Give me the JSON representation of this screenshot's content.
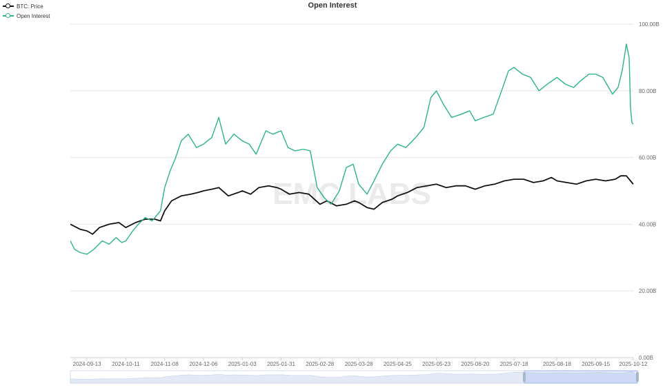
{
  "chart_data": {
    "type": "line",
    "title": "Open Interest",
    "xlabel": "",
    "ylabel": "",
    "watermark": "EMC LABS",
    "x_ticks": [
      "2024-09-13",
      "2024-10-11",
      "2024-11-08",
      "2024-12-06",
      "2025-01-03",
      "2025-01-31",
      "2025-02-28",
      "2025-03-28",
      "2025-04-25",
      "2025-05-23",
      "2025-06-20",
      "2025-07-18",
      "2025-08-18",
      "2025-09-15",
      "2025-10-12"
    ],
    "y_ticks": [
      "0.00B",
      "20.00B",
      "40.00B",
      "60.00B",
      "80.00B",
      "100.00B"
    ],
    "ylim": [
      0,
      100
    ],
    "xlim": [
      "2024-09-01",
      "2025-10-12"
    ],
    "grid": true,
    "legend_position": "top-left",
    "series": [
      {
        "name": "BTC: Price",
        "color": "#111111",
        "points": [
          [
            "2024-09-01",
            40.0
          ],
          [
            "2024-09-08",
            38.5
          ],
          [
            "2024-09-13",
            38.0
          ],
          [
            "2024-09-17",
            37.0
          ],
          [
            "2024-09-22",
            39.0
          ],
          [
            "2024-09-29",
            40.0
          ],
          [
            "2024-10-06",
            40.5
          ],
          [
            "2024-10-11",
            39.0
          ],
          [
            "2024-10-18",
            40.5
          ],
          [
            "2024-10-25",
            41.5
          ],
          [
            "2024-11-01",
            41.5
          ],
          [
            "2024-11-05",
            41.0
          ],
          [
            "2024-11-08",
            44.0
          ],
          [
            "2024-11-13",
            47.0
          ],
          [
            "2024-11-20",
            48.5
          ],
          [
            "2024-11-27",
            49.0
          ],
          [
            "2024-12-02",
            49.5
          ],
          [
            "2024-12-06",
            50.0
          ],
          [
            "2024-12-12",
            50.5
          ],
          [
            "2024-12-17",
            51.0
          ],
          [
            "2024-12-24",
            48.5
          ],
          [
            "2024-12-31",
            49.5
          ],
          [
            "2025-01-03",
            50.0
          ],
          [
            "2025-01-09",
            49.0
          ],
          [
            "2025-01-15",
            51.0
          ],
          [
            "2025-01-22",
            51.5
          ],
          [
            "2025-01-28",
            51.0
          ],
          [
            "2025-01-31",
            50.5
          ],
          [
            "2025-02-06",
            49.0
          ],
          [
            "2025-02-13",
            49.5
          ],
          [
            "2025-02-20",
            49.0
          ],
          [
            "2025-02-28",
            46.0
          ],
          [
            "2025-03-05",
            47.0
          ],
          [
            "2025-03-12",
            45.5
          ],
          [
            "2025-03-19",
            46.0
          ],
          [
            "2025-03-25",
            47.0
          ],
          [
            "2025-03-28",
            46.5
          ],
          [
            "2025-04-03",
            45.0
          ],
          [
            "2025-04-08",
            44.5
          ],
          [
            "2025-04-14",
            46.5
          ],
          [
            "2025-04-21",
            47.5
          ],
          [
            "2025-04-25",
            48.5
          ],
          [
            "2025-05-02",
            49.5
          ],
          [
            "2025-05-09",
            51.0
          ],
          [
            "2025-05-16",
            51.5
          ],
          [
            "2025-05-23",
            52.0
          ],
          [
            "2025-05-30",
            51.0
          ],
          [
            "2025-06-06",
            51.5
          ],
          [
            "2025-06-13",
            51.5
          ],
          [
            "2025-06-20",
            50.5
          ],
          [
            "2025-06-27",
            51.5
          ],
          [
            "2025-07-04",
            52.0
          ],
          [
            "2025-07-11",
            53.0
          ],
          [
            "2025-07-18",
            53.5
          ],
          [
            "2025-07-25",
            53.5
          ],
          [
            "2025-08-01",
            52.5
          ],
          [
            "2025-08-08",
            53.0
          ],
          [
            "2025-08-14",
            54.0
          ],
          [
            "2025-08-18",
            53.0
          ],
          [
            "2025-08-25",
            52.5
          ],
          [
            "2025-09-01",
            52.0
          ],
          [
            "2025-09-08",
            53.0
          ],
          [
            "2025-09-15",
            53.5
          ],
          [
            "2025-09-22",
            53.0
          ],
          [
            "2025-09-29",
            53.5
          ],
          [
            "2025-10-03",
            54.5
          ],
          [
            "2025-10-07",
            54.5
          ],
          [
            "2025-10-10",
            53.0
          ],
          [
            "2025-10-12",
            52.0
          ]
        ]
      },
      {
        "name": "Open Interest",
        "color": "#2bb580",
        "points": [
          [
            "2024-09-01",
            35.0
          ],
          [
            "2024-09-04",
            32.5
          ],
          [
            "2024-09-08",
            31.5
          ],
          [
            "2024-09-13",
            31.0
          ],
          [
            "2024-09-18",
            32.5
          ],
          [
            "2024-09-24",
            35.0
          ],
          [
            "2024-09-29",
            34.0
          ],
          [
            "2024-10-04",
            36.0
          ],
          [
            "2024-10-08",
            34.5
          ],
          [
            "2024-10-11",
            35.0
          ],
          [
            "2024-10-16",
            38.0
          ],
          [
            "2024-10-20",
            40.0
          ],
          [
            "2024-10-25",
            42.0
          ],
          [
            "2024-10-30",
            41.0
          ],
          [
            "2024-11-05",
            44.0
          ],
          [
            "2024-11-08",
            51.0
          ],
          [
            "2024-11-12",
            56.0
          ],
          [
            "2024-11-16",
            60.0
          ],
          [
            "2024-11-20",
            65.0
          ],
          [
            "2024-11-25",
            67.0
          ],
          [
            "2024-12-01",
            63.0
          ],
          [
            "2024-12-06",
            64.0
          ],
          [
            "2024-12-12",
            66.0
          ],
          [
            "2024-12-17",
            72.0
          ],
          [
            "2024-12-22",
            64.0
          ],
          [
            "2024-12-28",
            67.0
          ],
          [
            "2025-01-03",
            65.0
          ],
          [
            "2025-01-08",
            64.0
          ],
          [
            "2025-01-13",
            61.0
          ],
          [
            "2025-01-20",
            68.0
          ],
          [
            "2025-01-25",
            67.0
          ],
          [
            "2025-01-31",
            68.0
          ],
          [
            "2025-02-05",
            63.0
          ],
          [
            "2025-02-10",
            62.0
          ],
          [
            "2025-02-16",
            62.5
          ],
          [
            "2025-02-21",
            62.0
          ],
          [
            "2025-02-26",
            51.0
          ],
          [
            "2025-03-03",
            48.0
          ],
          [
            "2025-03-08",
            46.0
          ],
          [
            "2025-03-14",
            50.0
          ],
          [
            "2025-03-19",
            57.0
          ],
          [
            "2025-03-24",
            58.0
          ],
          [
            "2025-03-28",
            52.0
          ],
          [
            "2025-04-03",
            49.0
          ],
          [
            "2025-04-08",
            53.0
          ],
          [
            "2025-04-14",
            58.0
          ],
          [
            "2025-04-20",
            62.0
          ],
          [
            "2025-04-25",
            64.0
          ],
          [
            "2025-05-01",
            63.0
          ],
          [
            "2025-05-08",
            66.0
          ],
          [
            "2025-05-14",
            69.0
          ],
          [
            "2025-05-19",
            78.0
          ],
          [
            "2025-05-23",
            80.0
          ],
          [
            "2025-05-28",
            76.0
          ],
          [
            "2025-06-03",
            72.0
          ],
          [
            "2025-06-10",
            73.0
          ],
          [
            "2025-06-16",
            74.0
          ],
          [
            "2025-06-20",
            71.0
          ],
          [
            "2025-06-26",
            72.0
          ],
          [
            "2025-07-03",
            73.0
          ],
          [
            "2025-07-09",
            80.0
          ],
          [
            "2025-07-14",
            86.0
          ],
          [
            "2025-07-18",
            87.0
          ],
          [
            "2025-07-24",
            85.0
          ],
          [
            "2025-07-30",
            84.0
          ],
          [
            "2025-08-05",
            80.0
          ],
          [
            "2025-08-11",
            82.0
          ],
          [
            "2025-08-18",
            84.0
          ],
          [
            "2025-08-24",
            82.0
          ],
          [
            "2025-08-30",
            81.0
          ],
          [
            "2025-09-04",
            83.0
          ],
          [
            "2025-09-10",
            85.0
          ],
          [
            "2025-09-15",
            85.0
          ],
          [
            "2025-09-20",
            84.0
          ],
          [
            "2025-09-27",
            79.0
          ],
          [
            "2025-10-01",
            81.0
          ],
          [
            "2025-10-04",
            86.0
          ],
          [
            "2025-10-07",
            94.0
          ],
          [
            "2025-10-09",
            90.0
          ],
          [
            "2025-10-10",
            75.0
          ],
          [
            "2025-10-11",
            70.5
          ],
          [
            "2025-10-12",
            70.0
          ]
        ]
      }
    ]
  }
}
